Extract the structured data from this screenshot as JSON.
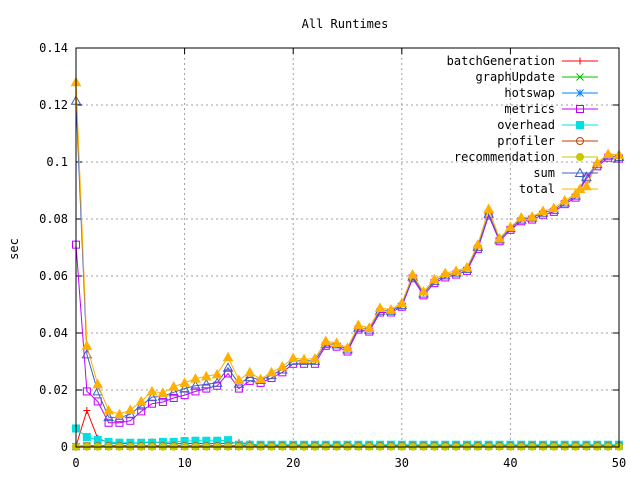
{
  "chart_data": {
    "type": "line",
    "title": "All Runtimes",
    "xlabel": "",
    "ylabel": "sec",
    "xlim": [
      0,
      50
    ],
    "ylim": [
      0,
      0.14
    ],
    "x_ticks": [
      "0",
      "10",
      "20",
      "30",
      "40",
      "50"
    ],
    "y_ticks": [
      "0",
      "0.02",
      "0.04",
      "0.06",
      "0.08",
      "0.1",
      "0.12",
      "0.14"
    ],
    "grid": true,
    "legend_position": "top-right",
    "x": [
      0,
      1,
      2,
      3,
      4,
      5,
      6,
      7,
      8,
      9,
      10,
      11,
      12,
      13,
      14,
      15,
      16,
      17,
      18,
      19,
      20,
      21,
      22,
      23,
      24,
      25,
      26,
      27,
      28,
      29,
      30,
      31,
      32,
      33,
      34,
      35,
      36,
      37,
      38,
      39,
      40,
      41,
      42,
      43,
      44,
      45,
      46,
      47,
      48,
      49,
      50
    ],
    "series": [
      {
        "name": "batchGeneration",
        "color": "#ff0000",
        "marker": "plus",
        "values": [
          0.0003,
          0.0128,
          0.003,
          0.0015,
          0.0012,
          0.0013,
          0.0015,
          0.0018,
          0.0014,
          0.0012,
          0.0012,
          0.0013,
          0.0012,
          0.0012,
          0.0013,
          0.0015,
          0.0012,
          0.0005,
          0.0005,
          0.0005,
          0.0005,
          0.0005,
          0.0005,
          0.0005,
          0.0005,
          0.0005,
          0.0005,
          0.0005,
          0.0005,
          0.0005,
          0.0005,
          0.0005,
          0.0004,
          0.0004,
          0.0004,
          0.0004,
          0.0004,
          0.0004,
          0.0004,
          0.0004,
          0.0004,
          0.0004,
          0.0004,
          0.0004,
          0.0004,
          0.0004,
          0.0004,
          0.0004,
          0.0004,
          0.0004,
          0.0004
        ]
      },
      {
        "name": "graphUpdate",
        "color": "#00c000",
        "marker": "cross",
        "values": [
          0.0002,
          0.0005,
          0.0005,
          0.0005,
          0.0005,
          0.0005,
          0.0005,
          0.0005,
          0.0005,
          0.0005,
          0.0005,
          0.0005,
          0.0005,
          0.0005,
          0.0005,
          0.0005,
          0.0005,
          0.0005,
          0.0005,
          0.0005,
          0.0005,
          0.0005,
          0.0005,
          0.0005,
          0.0005,
          0.0005,
          0.0005,
          0.0005,
          0.0005,
          0.0005,
          0.0005,
          0.0005,
          0.0005,
          0.0005,
          0.0005,
          0.0005,
          0.0005,
          0.0005,
          0.0005,
          0.0005,
          0.0005,
          0.0005,
          0.0005,
          0.0005,
          0.0005,
          0.0005,
          0.0005,
          0.0005,
          0.0005,
          0.0005,
          0.0005
        ]
      },
      {
        "name": "hotswap",
        "color": "#0080ff",
        "marker": "star",
        "values": [
          0.0001,
          0.0002,
          0.0002,
          0.0002,
          0.0002,
          0.0002,
          0.0002,
          0.0002,
          0.0002,
          0.0002,
          0.0002,
          0.0002,
          0.0002,
          0.0002,
          0.0002,
          0.0002,
          0.0002,
          0.0002,
          0.0002,
          0.0002,
          0.0002,
          0.0002,
          0.0002,
          0.0002,
          0.0002,
          0.0002,
          0.0002,
          0.0002,
          0.0002,
          0.0002,
          0.0002,
          0.0002,
          0.0002,
          0.0002,
          0.0002,
          0.0002,
          0.0002,
          0.0002,
          0.0002,
          0.0002,
          0.0002,
          0.0002,
          0.0002,
          0.0002,
          0.0002,
          0.0002,
          0.0002,
          0.0002,
          0.0002,
          0.0002,
          0.0002
        ]
      },
      {
        "name": "metrics",
        "color": "#c000ff",
        "marker": "square",
        "values": [
          0.071,
          0.0195,
          0.016,
          0.0085,
          0.0085,
          0.0092,
          0.0125,
          0.0152,
          0.0158,
          0.0172,
          0.0182,
          0.0195,
          0.0205,
          0.0215,
          0.0258,
          0.0205,
          0.0232,
          0.0225,
          0.0242,
          0.0262,
          0.0292,
          0.0292,
          0.0292,
          0.0355,
          0.0352,
          0.0335,
          0.0412,
          0.0405,
          0.0472,
          0.0472,
          0.0492,
          0.0592,
          0.0532,
          0.0575,
          0.0595,
          0.0605,
          0.0618,
          0.0695,
          0.0812,
          0.0722,
          0.0762,
          0.0792,
          0.0798,
          0.0815,
          0.0825,
          0.0852,
          0.0875,
          0.0942,
          0.0985,
          0.1015,
          0.1012
        ]
      },
      {
        "name": "overhead",
        "color": "#00e0e0",
        "marker": "filled-square",
        "values": [
          0.0065,
          0.0035,
          0.0025,
          0.0018,
          0.0015,
          0.0015,
          0.0015,
          0.0015,
          0.0018,
          0.0018,
          0.0021,
          0.0022,
          0.0022,
          0.0022,
          0.0024,
          0.0008,
          0.0008,
          0.0008,
          0.0008,
          0.0008,
          0.0008,
          0.0008,
          0.0008,
          0.0008,
          0.0008,
          0.0008,
          0.0008,
          0.0008,
          0.0008,
          0.0008,
          0.0008,
          0.0008,
          0.0008,
          0.0008,
          0.0008,
          0.0008,
          0.0008,
          0.0008,
          0.0008,
          0.0008,
          0.0008,
          0.0008,
          0.0008,
          0.0008,
          0.0008,
          0.0008,
          0.0008,
          0.0008,
          0.0008,
          0.0008,
          0.0008
        ]
      },
      {
        "name": "profiler",
        "color": "#c04000",
        "marker": "circle",
        "values": [
          0.0001,
          0.0003,
          0.0003,
          0.0003,
          0.0003,
          0.0003,
          0.0003,
          0.0003,
          0.0003,
          0.0003,
          0.0003,
          0.0003,
          0.0003,
          0.0003,
          0.0003,
          0.0003,
          0.0003,
          0.0003,
          0.0003,
          0.0003,
          0.0003,
          0.0003,
          0.0003,
          0.0003,
          0.0003,
          0.0003,
          0.0003,
          0.0003,
          0.0003,
          0.0003,
          0.0003,
          0.0003,
          0.0003,
          0.0003,
          0.0003,
          0.0003,
          0.0003,
          0.0003,
          0.0003,
          0.0003,
          0.0003,
          0.0003,
          0.0003,
          0.0003,
          0.0003,
          0.0003,
          0.0003,
          0.0003,
          0.0003,
          0.0003,
          0.0003
        ]
      },
      {
        "name": "recommendation",
        "color": "#c8c800",
        "marker": "filled-circle",
        "values": [
          0.0001,
          0.0001,
          0.0001,
          0.0001,
          0.0001,
          0.0001,
          0.0001,
          0.0001,
          0.0001,
          0.0001,
          0.0001,
          0.0001,
          0.0001,
          0.0001,
          0.0001,
          0.0001,
          0.0001,
          0.0001,
          0.0001,
          0.0001,
          0.0001,
          0.0001,
          0.0001,
          0.0001,
          0.0001,
          0.0001,
          0.0001,
          0.0001,
          0.0001,
          0.0001,
          0.0001,
          0.0001,
          0.0001,
          0.0001,
          0.0001,
          0.0001,
          0.0001,
          0.0001,
          0.0001,
          0.0001,
          0.0001,
          0.0001,
          0.0001,
          0.0001,
          0.0001,
          0.0001,
          0.0001,
          0.0001,
          0.0001,
          0.0001,
          0.0001
        ]
      },
      {
        "name": "sum",
        "color": "#4060c0",
        "marker": "triangle",
        "values": [
          0.1215,
          0.0325,
          0.0195,
          0.0105,
          0.0102,
          0.0115,
          0.0145,
          0.0175,
          0.0178,
          0.0192,
          0.0205,
          0.0215,
          0.022,
          0.0225,
          0.0278,
          0.0222,
          0.0245,
          0.0235,
          0.0252,
          0.0272,
          0.0302,
          0.0302,
          0.0302,
          0.0362,
          0.036,
          0.0342,
          0.0418,
          0.0412,
          0.0478,
          0.0478,
          0.0498,
          0.0598,
          0.0538,
          0.0582,
          0.0602,
          0.0612,
          0.0625,
          0.0702,
          0.0818,
          0.0728,
          0.0768,
          0.0798,
          0.0805,
          0.0822,
          0.0832,
          0.0858,
          0.0882,
          0.0948,
          0.0992,
          0.1022,
          0.1018
        ]
      },
      {
        "name": "total",
        "color": "#ffb000",
        "marker": "filled-triangle",
        "values": [
          0.128,
          0.0355,
          0.022,
          0.0128,
          0.0115,
          0.013,
          0.016,
          0.0195,
          0.019,
          0.0212,
          0.0225,
          0.024,
          0.0248,
          0.0255,
          0.0315,
          0.0235,
          0.0262,
          0.0238,
          0.0262,
          0.0282,
          0.0312,
          0.0308,
          0.031,
          0.0372,
          0.0365,
          0.0348,
          0.0428,
          0.0418,
          0.0488,
          0.0482,
          0.0505,
          0.0605,
          0.0545,
          0.0588,
          0.061,
          0.0618,
          0.063,
          0.071,
          0.0835,
          0.0732,
          0.0772,
          0.0805,
          0.0808,
          0.0828,
          0.0838,
          0.0865,
          0.0888,
          0.0915,
          0.0998,
          0.1028,
          0.1025
        ]
      }
    ]
  }
}
